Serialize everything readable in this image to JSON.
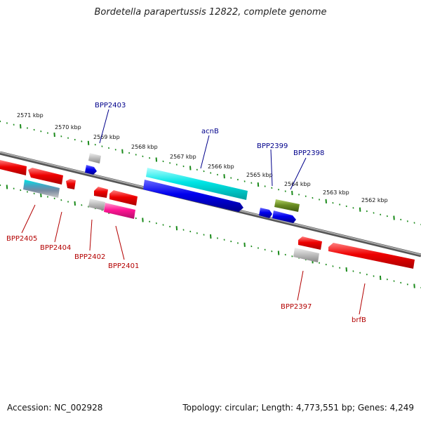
{
  "title": "Bordetella parapertussis 12822, complete genome",
  "footer": {
    "accession": "Accession: NC_002928",
    "summary": "Topology: circular; Length: 4,773,551 bp; Genes: 4,249"
  },
  "scale": {
    "labels": [
      "2571 kbp",
      "2570 kbp",
      "2569 kbp",
      "2568 kbp",
      "2567 kbp",
      "2566 kbp",
      "2565 kbp",
      "2564 kbp",
      "2563 kbp",
      "2562 kbp"
    ]
  },
  "features": [
    {
      "name": "BPP2403",
      "color": "#0000ee"
    },
    {
      "name": "acnB",
      "color": "#00e5e5"
    },
    {
      "name": "BPP2399",
      "color": "#0000ee"
    },
    {
      "name": "BPP2398",
      "color": "#6b8e23"
    },
    {
      "name": "BPP2405",
      "color": "#ee0000"
    },
    {
      "name": "BPP2404",
      "color": "#ee0000"
    },
    {
      "name": "BPP2402",
      "color": "#ee0000"
    },
    {
      "name": "BPP2401",
      "color": "#ff1493"
    },
    {
      "name": "BPP2397",
      "color": "#ee0000"
    },
    {
      "name": "brfB",
      "color": "#ee0000"
    }
  ]
}
